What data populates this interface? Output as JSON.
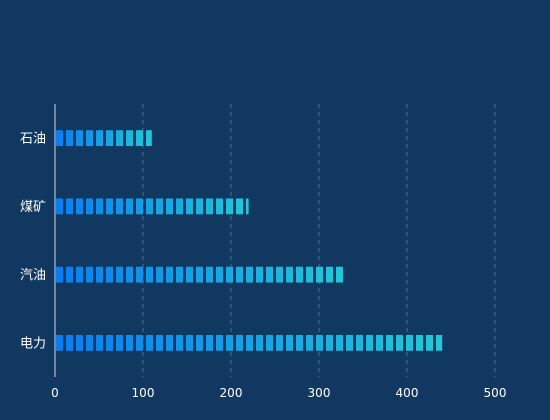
{
  "chart_data": {
    "type": "bar",
    "orientation": "horizontal",
    "categories": [
      "石油",
      "煤矿",
      "汽油",
      "电力"
    ],
    "values": [
      110,
      220,
      330,
      440
    ],
    "xlim": [
      0,
      500
    ],
    "xticks": [
      0,
      100,
      200,
      300,
      400,
      500
    ],
    "grid": "vertical dashed",
    "title": "",
    "xlabel": "",
    "ylabel": "",
    "colors": {
      "background": "#103861",
      "bar_start": "#0a7df0",
      "bar_end": "#22c8d8",
      "grid": "#4f6f90",
      "axis": "#cfd8e3",
      "text": "#ffffff"
    }
  }
}
